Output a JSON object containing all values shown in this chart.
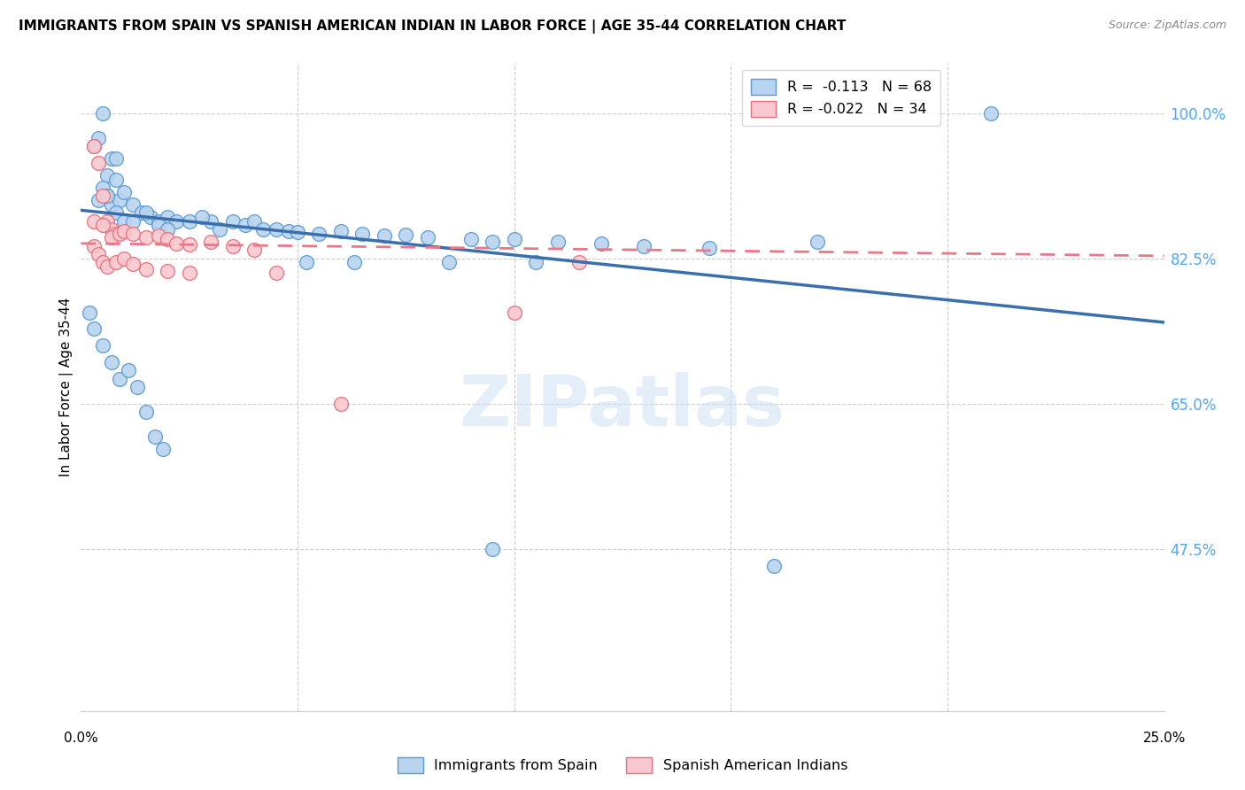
{
  "title": "IMMIGRANTS FROM SPAIN VS SPANISH AMERICAN INDIAN IN LABOR FORCE | AGE 35-44 CORRELATION CHART",
  "source": "Source: ZipAtlas.com",
  "ylabel": "In Labor Force | Age 35-44",
  "xlim": [
    0.0,
    0.25
  ],
  "ylim": [
    0.28,
    1.06
  ],
  "yticks": [
    0.475,
    0.65,
    0.825,
    1.0
  ],
  "ytick_labels": [
    "47.5%",
    "65.0%",
    "82.5%",
    "100.0%"
  ],
  "legend_r1": "R =  -0.113   N = 68",
  "legend_r2": "R = -0.022   N = 34",
  "blue_fill": "#b8d4ee",
  "blue_edge": "#5b9bd5",
  "pink_fill": "#f8c8d0",
  "pink_edge": "#e8707a",
  "blue_line_color": "#3a6fad",
  "pink_line_color": "#e87888",
  "blue_line_x": [
    0.0,
    0.25
  ],
  "blue_line_y": [
    0.883,
    0.748
  ],
  "pink_line_x": [
    0.0,
    0.25
  ],
  "pink_line_y": [
    0.843,
    0.828
  ],
  "blue_scatter_x": [
    0.004,
    0.005,
    0.003,
    0.007,
    0.006,
    0.008,
    0.005,
    0.006,
    0.004,
    0.007,
    0.009,
    0.008,
    0.006,
    0.01,
    0.008,
    0.012,
    0.01,
    0.014,
    0.012,
    0.016,
    0.018,
    0.015,
    0.02,
    0.022,
    0.018,
    0.025,
    0.02,
    0.03,
    0.028,
    0.032,
    0.035,
    0.038,
    0.04,
    0.042,
    0.045,
    0.048,
    0.05,
    0.055,
    0.06,
    0.065,
    0.07,
    0.075,
    0.08,
    0.09,
    0.095,
    0.1,
    0.11,
    0.12,
    0.13,
    0.145,
    0.002,
    0.003,
    0.005,
    0.007,
    0.009,
    0.011,
    0.013,
    0.015,
    0.017,
    0.019,
    0.21,
    0.17,
    0.105,
    0.085,
    0.052,
    0.063,
    0.095,
    0.16
  ],
  "blue_scatter_y": [
    0.97,
    1.0,
    0.96,
    0.945,
    0.925,
    0.945,
    0.91,
    0.9,
    0.895,
    0.89,
    0.895,
    0.92,
    0.9,
    0.905,
    0.88,
    0.89,
    0.87,
    0.88,
    0.87,
    0.875,
    0.87,
    0.88,
    0.875,
    0.87,
    0.865,
    0.87,
    0.86,
    0.87,
    0.875,
    0.86,
    0.87,
    0.865,
    0.87,
    0.86,
    0.86,
    0.858,
    0.857,
    0.855,
    0.858,
    0.855,
    0.852,
    0.853,
    0.85,
    0.848,
    0.845,
    0.848,
    0.845,
    0.843,
    0.84,
    0.838,
    0.76,
    0.74,
    0.72,
    0.7,
    0.68,
    0.69,
    0.67,
    0.64,
    0.61,
    0.595,
    1.0,
    0.845,
    0.82,
    0.82,
    0.82,
    0.82,
    0.475,
    0.455
  ],
  "pink_scatter_x": [
    0.003,
    0.004,
    0.005,
    0.006,
    0.007,
    0.008,
    0.003,
    0.005,
    0.007,
    0.009,
    0.01,
    0.012,
    0.015,
    0.018,
    0.02,
    0.022,
    0.025,
    0.03,
    0.035,
    0.04,
    0.003,
    0.004,
    0.005,
    0.006,
    0.008,
    0.01,
    0.012,
    0.015,
    0.02,
    0.025,
    0.115,
    0.1,
    0.06,
    0.045
  ],
  "pink_scatter_y": [
    0.96,
    0.94,
    0.9,
    0.87,
    0.86,
    0.855,
    0.87,
    0.865,
    0.85,
    0.855,
    0.858,
    0.855,
    0.85,
    0.852,
    0.848,
    0.843,
    0.842,
    0.845,
    0.84,
    0.835,
    0.84,
    0.83,
    0.82,
    0.815,
    0.82,
    0.825,
    0.818,
    0.812,
    0.81,
    0.808,
    0.82,
    0.76,
    0.65,
    0.808
  ]
}
